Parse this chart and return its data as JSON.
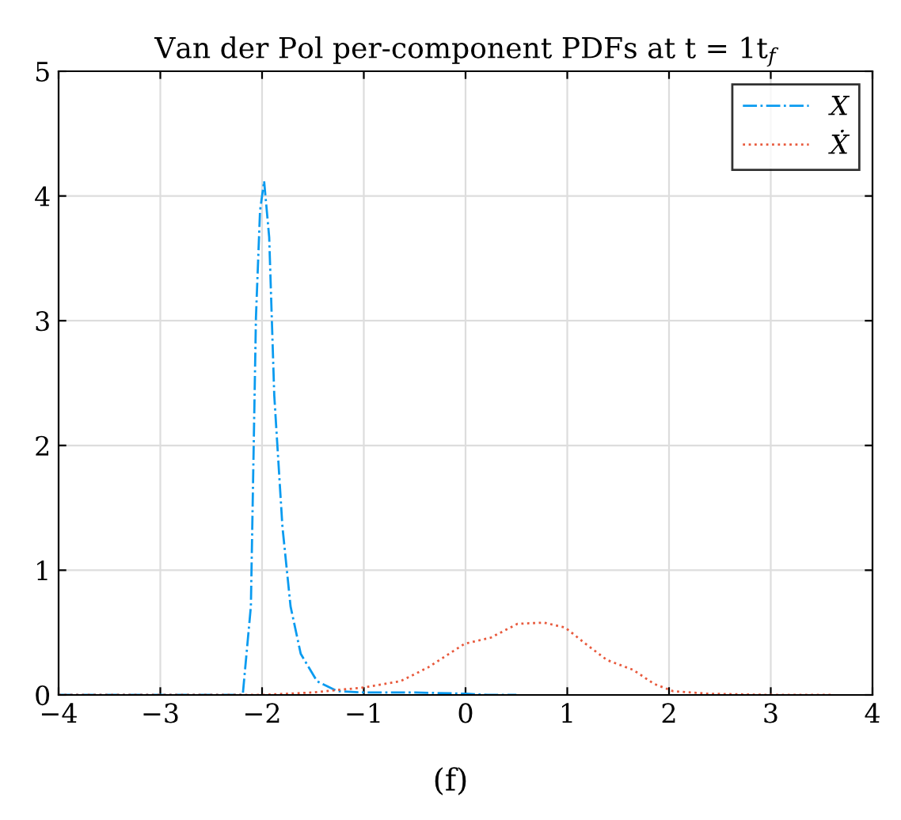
{
  "chart_data": {
    "type": "line",
    "title": "Van der Pol per-component PDFs at t = 1t$_{f}$",
    "annotations": [
      "(f)"
    ],
    "series": [
      {
        "name": "X",
        "color": "#0a9bf0",
        "line_style": "dashdot",
        "x": [
          -4,
          -2.5,
          -2.19,
          -2.11,
          -2.06,
          -2.02,
          -1.98,
          -1.93,
          -1.88,
          -1.8,
          -1.72,
          -1.62,
          -1.46,
          -1.26,
          -1.0,
          -0.5,
          0.0,
          0.22,
          0.5
        ],
        "values": [
          0,
          0,
          0,
          0.71,
          3.03,
          3.88,
          4.12,
          3.67,
          2.4,
          1.35,
          0.71,
          0.33,
          0.11,
          0.03,
          0.02,
          0.02,
          0.01,
          0,
          0
        ]
      },
      {
        "name": "Ẋ",
        "color": "#e8593c",
        "line_style": "dotted",
        "x": [
          -4,
          -2.0,
          -1.5,
          -1.0,
          -0.64,
          -0.37,
          -0.01,
          0.25,
          0.51,
          0.77,
          0.98,
          1.18,
          1.39,
          1.65,
          1.85,
          2.04,
          2.38,
          3.0,
          3.6
        ],
        "values": [
          0,
          0,
          0.02,
          0.06,
          0.11,
          0.22,
          0.41,
          0.46,
          0.57,
          0.58,
          0.54,
          0.41,
          0.28,
          0.2,
          0.09,
          0.03,
          0.01,
          0,
          0
        ]
      }
    ],
    "xlim": [
      -4,
      4
    ],
    "xticks": [
      -4,
      -3,
      -2,
      -1,
      0,
      1,
      2,
      3,
      4
    ],
    "ylim": [
      0,
      5
    ],
    "yticks": [
      0,
      1,
      2,
      3,
      4,
      5
    ],
    "grid": true,
    "legend": "top right"
  }
}
